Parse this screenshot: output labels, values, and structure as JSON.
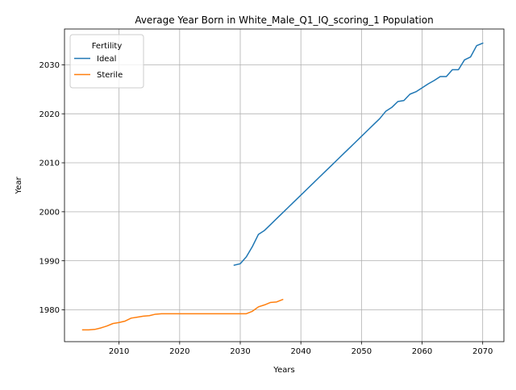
{
  "chart_data": {
    "type": "line",
    "title": "Average Year Born in White_Male_Q1_IQ_scoring_1 Population",
    "xlabel": "Years",
    "ylabel": "Year",
    "xlim": [
      2001,
      2073.5
    ],
    "ylim": [
      1973.5,
      2037.3
    ],
    "xticks": [
      2010,
      2020,
      2030,
      2040,
      2050,
      2060,
      2070
    ],
    "yticks": [
      1980,
      1990,
      2000,
      2010,
      2020,
      2030
    ],
    "grid": true,
    "legend": {
      "title": "Fertility",
      "placement": "top-left"
    },
    "series": [
      {
        "name": "Ideal",
        "color": "#1f77b4",
        "x": [
          2029,
          2030,
          2031,
          2032,
          2033,
          2034,
          2035,
          2036,
          2037,
          2038,
          2039,
          2040,
          2041,
          2042,
          2043,
          2044,
          2045,
          2046,
          2047,
          2048,
          2049,
          2050,
          2051,
          2052,
          2053,
          2054,
          2055,
          2056,
          2057,
          2058,
          2059,
          2060,
          2061,
          2062,
          2063,
          2064,
          2065,
          2066,
          2067,
          2068,
          2069,
          2070
        ],
        "y": [
          1989.1,
          1989.4,
          1990.8,
          1992.9,
          1995.4,
          1996.2,
          1997.4,
          1998.6,
          1999.8,
          2001.0,
          2002.2,
          2003.4,
          2004.6,
          2005.8,
          2007.0,
          2008.2,
          2009.4,
          2010.6,
          2011.8,
          2013.0,
          2014.2,
          2015.4,
          2016.6,
          2017.8,
          2019.0,
          2020.5,
          2021.3,
          2022.5,
          2022.7,
          2024.0,
          2024.5,
          2025.3,
          2026.1,
          2026.8,
          2027.6,
          2027.6,
          2029.0,
          2029.0,
          2031.0,
          2031.6,
          2033.9,
          2034.4
        ]
      },
      {
        "name": "Sterile",
        "color": "#ff7f0e",
        "x": [
          2004,
          2005,
          2006,
          2007,
          2008,
          2009,
          2010,
          2011,
          2012,
          2013,
          2014,
          2015,
          2016,
          2017,
          2018,
          2019,
          2020,
          2021,
          2022,
          2023,
          2024,
          2025,
          2026,
          2027,
          2028,
          2029,
          2030,
          2031,
          2032,
          2033,
          2034,
          2035,
          2036,
          2037
        ],
        "y": [
          1975.9,
          1975.9,
          1976.0,
          1976.3,
          1976.7,
          1977.2,
          1977.4,
          1977.7,
          1978.3,
          1978.5,
          1978.7,
          1978.8,
          1979.1,
          1979.2,
          1979.2,
          1979.2,
          1979.2,
          1979.2,
          1979.2,
          1979.2,
          1979.2,
          1979.2,
          1979.2,
          1979.2,
          1979.2,
          1979.2,
          1979.2,
          1979.2,
          1979.7,
          1980.6,
          1981.0,
          1981.5,
          1981.6,
          1982.1
        ]
      }
    ]
  }
}
